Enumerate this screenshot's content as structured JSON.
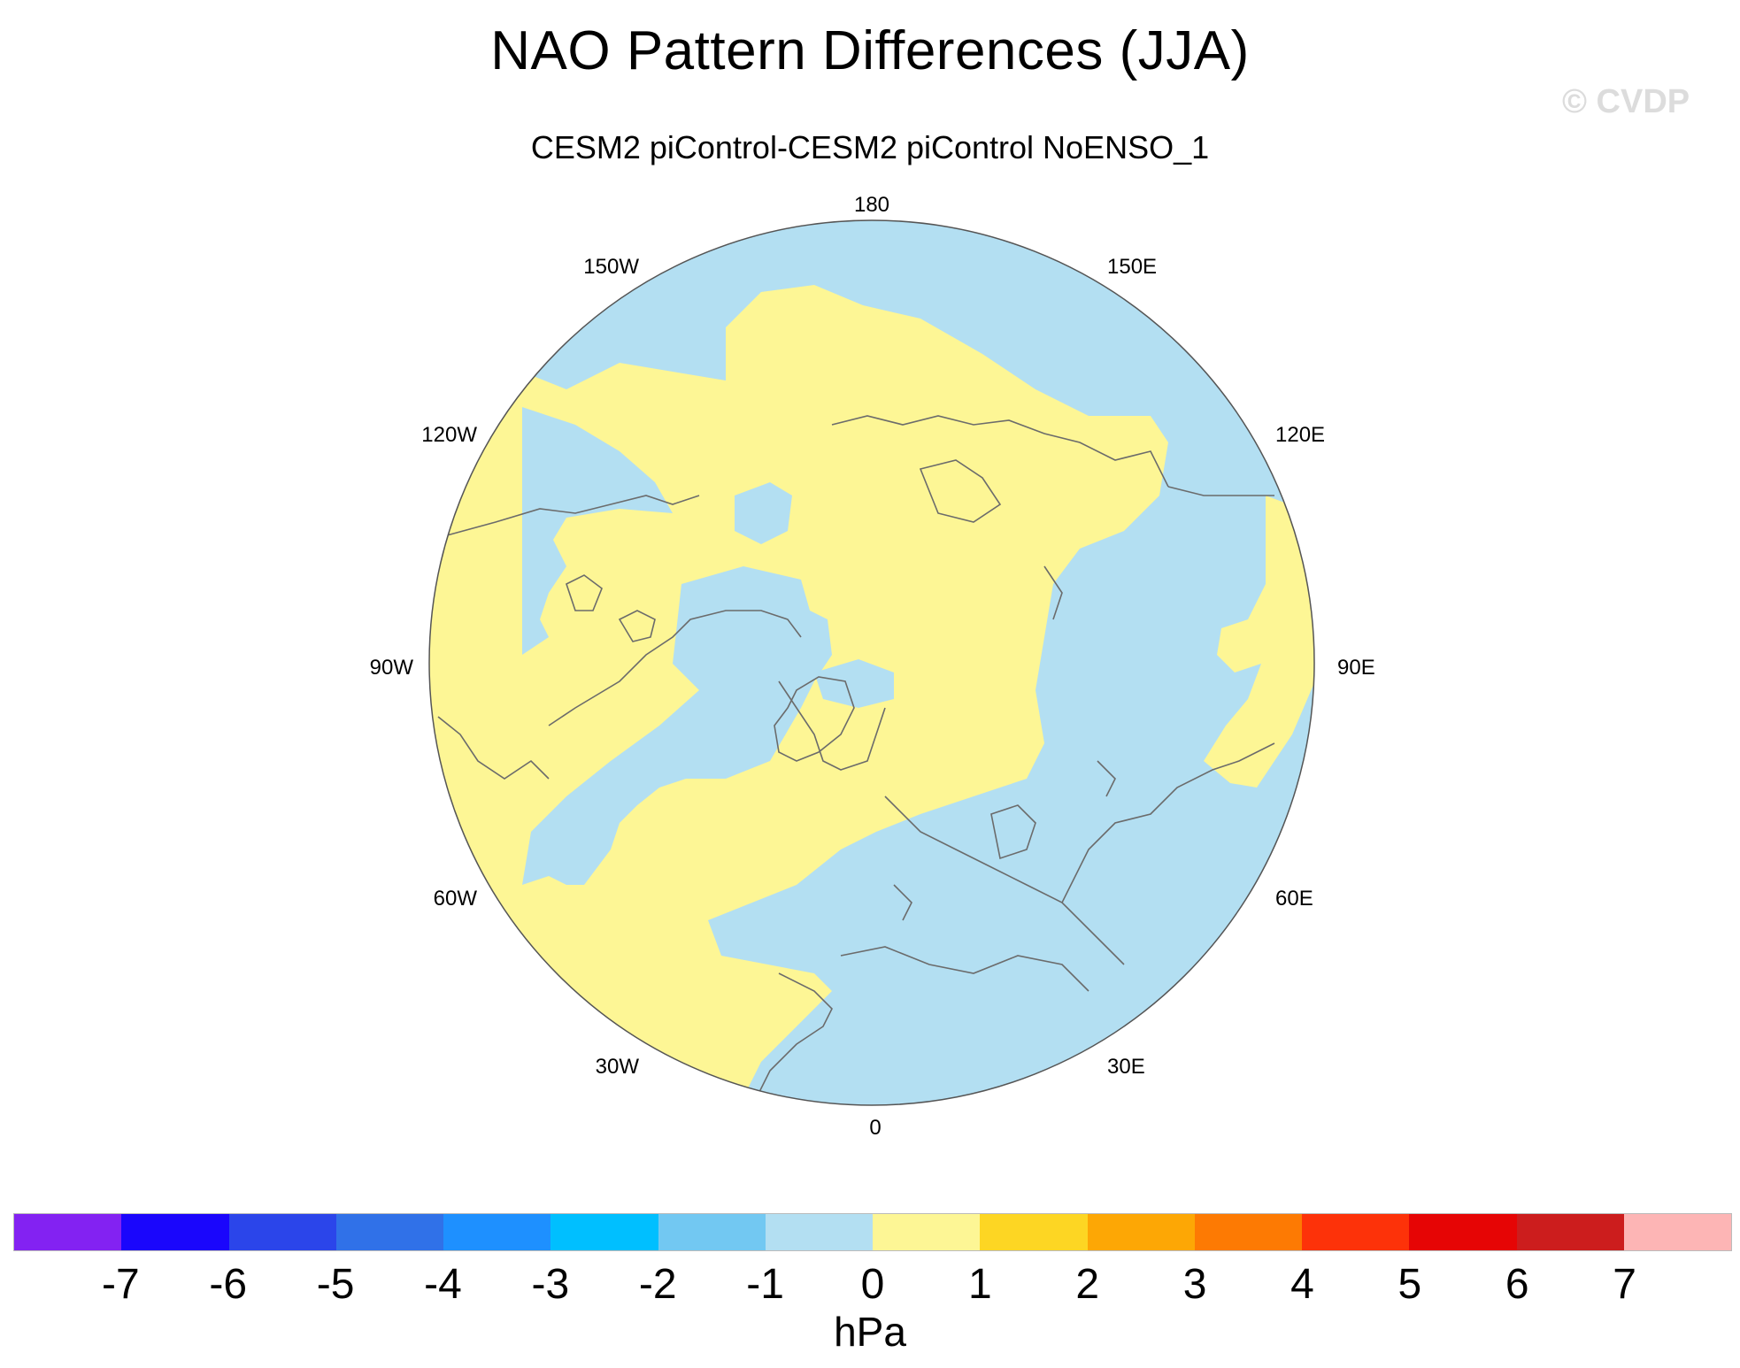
{
  "header": {
    "title": "NAO Pattern Differences (JJA)",
    "watermark": "© CVDP",
    "subtitle": "CESM2 piControl-CESM2 piControl NoENSO_1"
  },
  "map": {
    "projection": "north polar stereographic",
    "longitude_labels": [
      "180",
      "150E",
      "120E",
      "90E",
      "60E",
      "30E",
      "0",
      "30W",
      "60W",
      "90W",
      "120W",
      "150W"
    ],
    "field": "NAO pattern difference",
    "field_range_hPa": [
      -1,
      1
    ],
    "colors": {
      "negative_0_to_minus1": "#b3dff2",
      "positive_0_to_1": "#fdf695",
      "coastline": "#6b6b6b"
    }
  },
  "colorbar": {
    "units": "hPa",
    "tick_labels": [
      "-7",
      "-6",
      "-5",
      "-4",
      "-3",
      "-2",
      "-1",
      "0",
      "1",
      "2",
      "3",
      "4",
      "5",
      "6",
      "7"
    ],
    "colors": [
      "#8322f2",
      "#1a06fc",
      "#2b45ea",
      "#3071e8",
      "#1e90ff",
      "#00bfff",
      "#72c8f2",
      "#b3dff2",
      "#fdf695",
      "#fdd623",
      "#fda705",
      "#fd7a03",
      "#fd3209",
      "#e60505",
      "#cc1d1d",
      "#fdb5b5"
    ]
  }
}
